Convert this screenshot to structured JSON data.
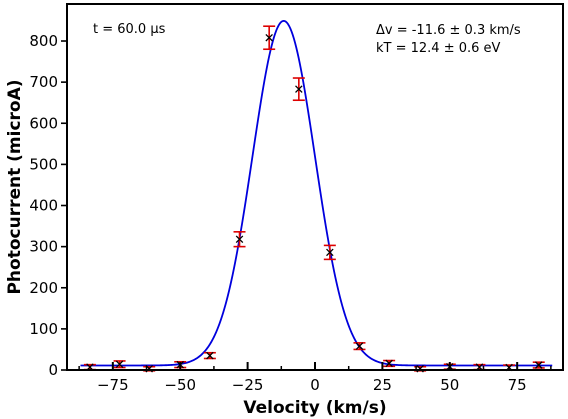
{
  "chart_data": {
    "type": "scatter",
    "title": "",
    "xlabel": "Velocity (km/s)",
    "ylabel": "Photocurrent (microA)",
    "xlim": [
      -92,
      92
    ],
    "ylim": [
      0,
      890
    ],
    "x_ticks": [
      -75,
      -50,
      -25,
      0,
      25,
      50,
      75
    ],
    "x_tick_labels": [
      "−75",
      "−50",
      "−25",
      "0",
      "25",
      "50",
      "75"
    ],
    "y_ticks": [
      0,
      100,
      200,
      300,
      400,
      500,
      600,
      700,
      800
    ],
    "y_tick_labels": [
      "0",
      "100",
      "200",
      "300",
      "400",
      "500",
      "600",
      "700",
      "800"
    ],
    "grid": false,
    "annotations": {
      "time": "t = 60.0 μs",
      "dv": "Δv = -11.6 ± 0.3 km/s",
      "kT": "kT = 12.4 ± 0.6 eV"
    },
    "colors": {
      "fit": "#0000dd",
      "errorbar": "#dd0000",
      "marker": "#000000"
    },
    "series": [
      {
        "kind": "measurements-with-error",
        "marker": "x",
        "points": [
          {
            "x": -83.5,
            "y": 7,
            "err": 6
          },
          {
            "x": -72.5,
            "y": 14,
            "err": 8
          },
          {
            "x": -61.5,
            "y": 3,
            "err": 5
          },
          {
            "x": -50,
            "y": 13,
            "err": 7
          },
          {
            "x": -39,
            "y": 35,
            "err": 7
          },
          {
            "x": -28,
            "y": 318,
            "err": 18
          },
          {
            "x": -17,
            "y": 808,
            "err": 28
          },
          {
            "x": -6,
            "y": 683,
            "err": 27
          },
          {
            "x": 5.5,
            "y": 286,
            "err": 17
          },
          {
            "x": 16.5,
            "y": 58,
            "err": 8
          },
          {
            "x": 27.5,
            "y": 16,
            "err": 7
          },
          {
            "x": 39,
            "y": 3,
            "err": 5
          },
          {
            "x": 50,
            "y": 8,
            "err": 6
          },
          {
            "x": 61,
            "y": 7,
            "err": 6
          },
          {
            "x": 72,
            "y": 6,
            "err": 6
          },
          {
            "x": 83,
            "y": 12,
            "err": 7
          }
        ]
      },
      {
        "kind": "gaussian-fit",
        "center": -11.6,
        "amplitude": 838,
        "baseline": 11,
        "sigma": 11.6,
        "x_range": [
          -87,
          88
        ]
      }
    ]
  }
}
